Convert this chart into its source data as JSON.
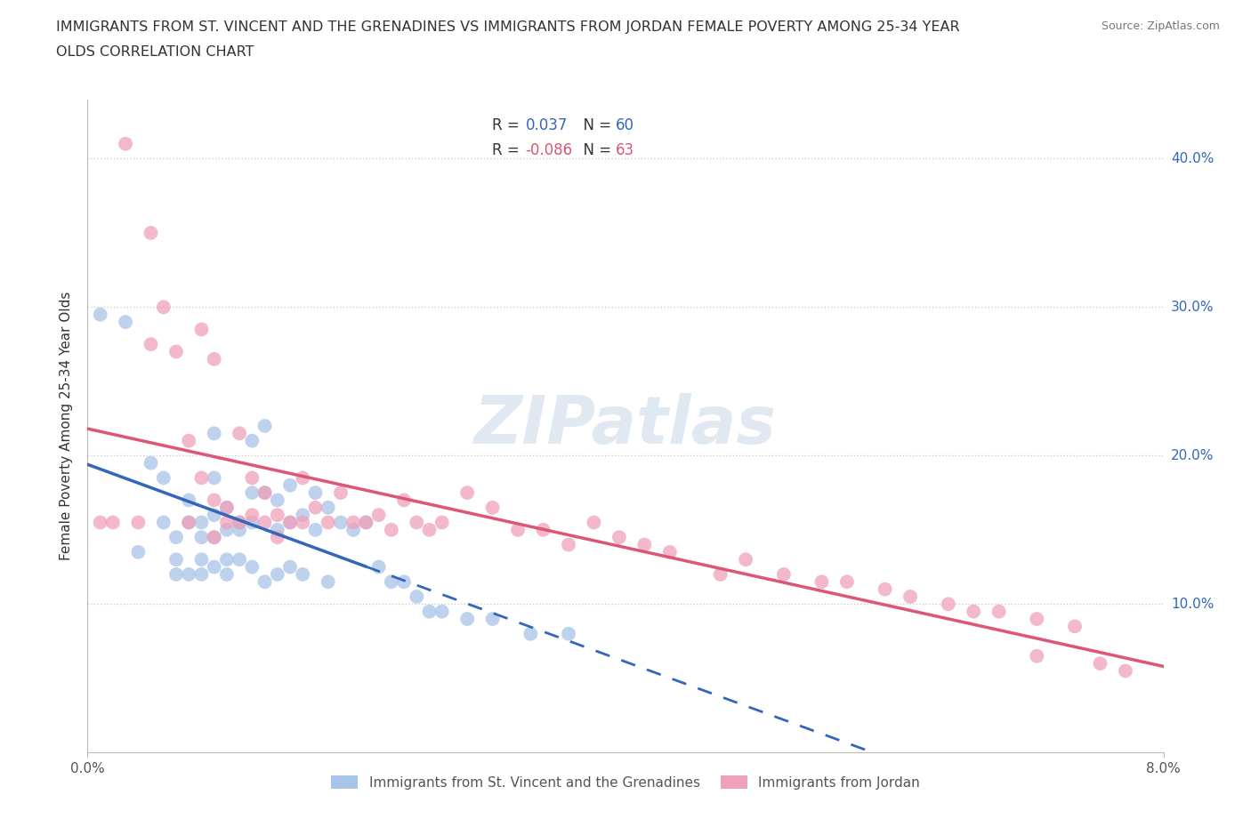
{
  "title_line1": "IMMIGRANTS FROM ST. VINCENT AND THE GRENADINES VS IMMIGRANTS FROM JORDAN FEMALE POVERTY AMONG 25-34 YEAR",
  "title_line2": "OLDS CORRELATION CHART",
  "source": "Source: ZipAtlas.com",
  "ylabel": "Female Poverty Among 25-34 Year Olds",
  "xlim": [
    0.0,
    0.085
  ],
  "ylim": [
    0.0,
    0.44
  ],
  "yticks": [
    0.1,
    0.2,
    0.3,
    0.4
  ],
  "ytick_labels": [
    "10.0%",
    "20.0%",
    "30.0%",
    "40.0%"
  ],
  "legend_label1": "Immigrants from St. Vincent and the Grenadines",
  "legend_label2": "Immigrants from Jordan",
  "R1": 0.037,
  "N1": 60,
  "R2": -0.086,
  "N2": 63,
  "color1": "#a8c4e8",
  "color2": "#f0a0b8",
  "line1_color": "#3366bb",
  "line2_color": "#dd5577",
  "watermark": "ZIPatlas",
  "background_color": "#ffffff",
  "scatter1_x": [
    0.001,
    0.003,
    0.004,
    0.005,
    0.006,
    0.006,
    0.007,
    0.007,
    0.007,
    0.008,
    0.008,
    0.008,
    0.009,
    0.009,
    0.009,
    0.009,
    0.01,
    0.01,
    0.01,
    0.01,
    0.01,
    0.011,
    0.011,
    0.011,
    0.011,
    0.012,
    0.012,
    0.012,
    0.013,
    0.013,
    0.013,
    0.013,
    0.014,
    0.014,
    0.014,
    0.015,
    0.015,
    0.015,
    0.016,
    0.016,
    0.016,
    0.017,
    0.017,
    0.018,
    0.018,
    0.019,
    0.019,
    0.02,
    0.021,
    0.022,
    0.023,
    0.024,
    0.025,
    0.026,
    0.027,
    0.028,
    0.03,
    0.032,
    0.035,
    0.038
  ],
  "scatter1_y": [
    0.295,
    0.29,
    0.135,
    0.195,
    0.185,
    0.155,
    0.145,
    0.13,
    0.12,
    0.17,
    0.155,
    0.12,
    0.155,
    0.145,
    0.13,
    0.12,
    0.215,
    0.185,
    0.16,
    0.145,
    0.125,
    0.165,
    0.15,
    0.13,
    0.12,
    0.155,
    0.15,
    0.13,
    0.21,
    0.175,
    0.155,
    0.125,
    0.22,
    0.175,
    0.115,
    0.17,
    0.15,
    0.12,
    0.18,
    0.155,
    0.125,
    0.16,
    0.12,
    0.175,
    0.15,
    0.165,
    0.115,
    0.155,
    0.15,
    0.155,
    0.125,
    0.115,
    0.115,
    0.105,
    0.095,
    0.095,
    0.09,
    0.09,
    0.08,
    0.08
  ],
  "scatter2_x": [
    0.001,
    0.002,
    0.003,
    0.004,
    0.005,
    0.005,
    0.006,
    0.007,
    0.008,
    0.008,
    0.009,
    0.009,
    0.01,
    0.01,
    0.01,
    0.011,
    0.011,
    0.012,
    0.012,
    0.013,
    0.013,
    0.014,
    0.014,
    0.015,
    0.015,
    0.016,
    0.017,
    0.017,
    0.018,
    0.019,
    0.02,
    0.021,
    0.022,
    0.023,
    0.024,
    0.025,
    0.026,
    0.027,
    0.028,
    0.03,
    0.032,
    0.034,
    0.036,
    0.038,
    0.04,
    0.042,
    0.044,
    0.046,
    0.05,
    0.052,
    0.055,
    0.058,
    0.06,
    0.063,
    0.065,
    0.068,
    0.07,
    0.072,
    0.075,
    0.078,
    0.08,
    0.082,
    0.075
  ],
  "scatter2_y": [
    0.155,
    0.155,
    0.41,
    0.155,
    0.35,
    0.275,
    0.3,
    0.27,
    0.21,
    0.155,
    0.285,
    0.185,
    0.265,
    0.17,
    0.145,
    0.165,
    0.155,
    0.215,
    0.155,
    0.185,
    0.16,
    0.175,
    0.155,
    0.16,
    0.145,
    0.155,
    0.185,
    0.155,
    0.165,
    0.155,
    0.175,
    0.155,
    0.155,
    0.16,
    0.15,
    0.17,
    0.155,
    0.15,
    0.155,
    0.175,
    0.165,
    0.15,
    0.15,
    0.14,
    0.155,
    0.145,
    0.14,
    0.135,
    0.12,
    0.13,
    0.12,
    0.115,
    0.115,
    0.11,
    0.105,
    0.1,
    0.095,
    0.095,
    0.09,
    0.085,
    0.06,
    0.055,
    0.065
  ]
}
